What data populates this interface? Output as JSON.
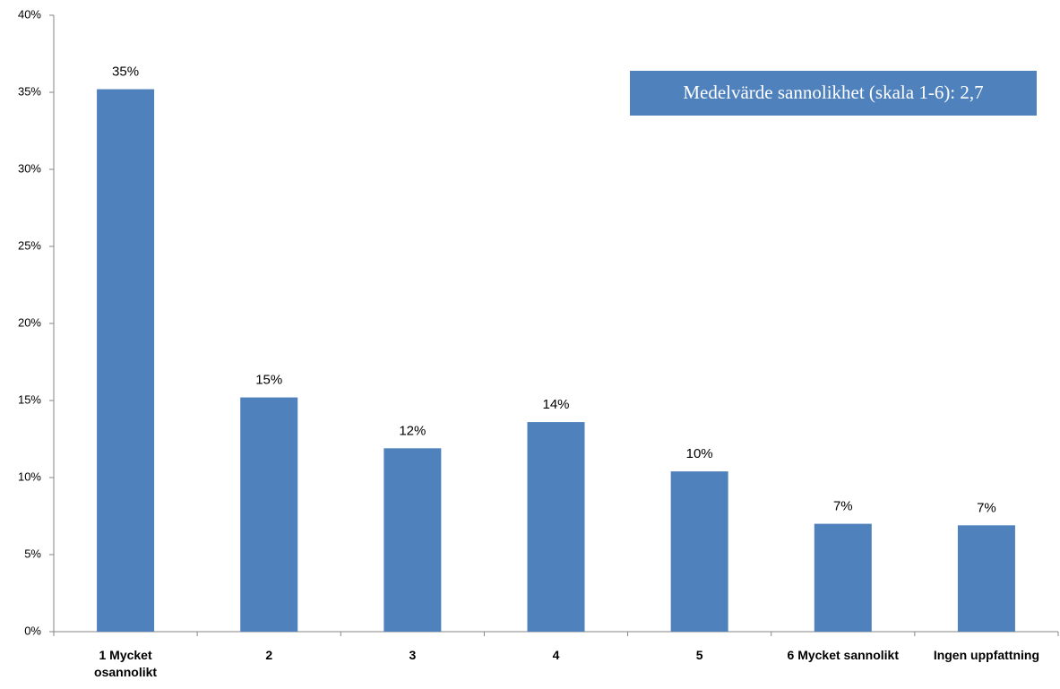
{
  "chart_data": {
    "type": "bar",
    "categories": [
      "1 Mycket osannolikt",
      "2",
      "3",
      "4",
      "5",
      "6 Mycket sannolikt",
      "Ingen uppfattning"
    ],
    "values": [
      35.2,
      15.2,
      11.9,
      13.6,
      10.4,
      7.0,
      6.9
    ],
    "value_labels": [
      "35%",
      "15%",
      "12%",
      "14%",
      "10%",
      "7%",
      "7%"
    ],
    "color": "#4f81bd",
    "ylim": [
      0,
      40
    ],
    "yticks": [
      {
        "value": 0,
        "label": "0%"
      },
      {
        "value": 5,
        "label": "5%"
      },
      {
        "value": 10,
        "label": "10%"
      },
      {
        "value": 15,
        "label": "15%"
      },
      {
        "value": 20,
        "label": "20%"
      },
      {
        "value": 25,
        "label": "25%"
      },
      {
        "value": 30,
        "label": "30%"
      },
      {
        "value": 35,
        "label": "35%"
      },
      {
        "value": 40,
        "label": "40%"
      }
    ],
    "annotation": "Medelvärde sannolikhet (skala 1-6): 2,7"
  }
}
